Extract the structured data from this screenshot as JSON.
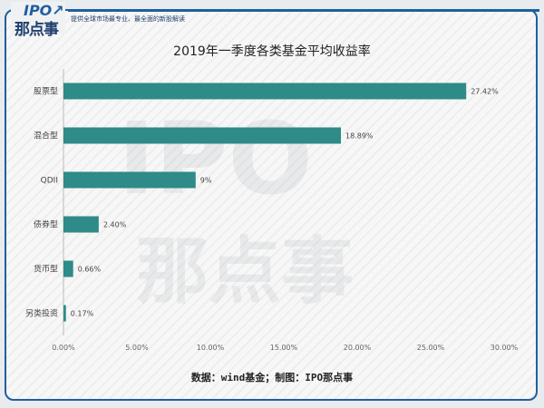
{
  "header": {
    "logo_text": "IPO那点事",
    "tagline": "提供全球市场最专业、最全面的新股解读"
  },
  "watermark": "IPO那点事",
  "chart_data": {
    "type": "bar",
    "orientation": "horizontal",
    "title": "2019年一季度各类基金平均收益率",
    "categories": [
      "股票型",
      "混合型",
      "QDII",
      "债券型",
      "货币型",
      "另类投资"
    ],
    "values": [
      27.42,
      18.89,
      9,
      2.4,
      0.66,
      0.17
    ],
    "data_labels": [
      "27.42%",
      "18.89%",
      "9%",
      "2.40%",
      "0.66%",
      "0.17%"
    ],
    "xlim": [
      0,
      30
    ],
    "xticks": [
      "0.00%",
      "5.00%",
      "10.00%",
      "15.00%",
      "20.00%",
      "25.00%",
      "30.00%"
    ],
    "bar_color": "#2e8b87",
    "grid": false,
    "source": "数据：wind基金；制图：IPO那点事"
  }
}
